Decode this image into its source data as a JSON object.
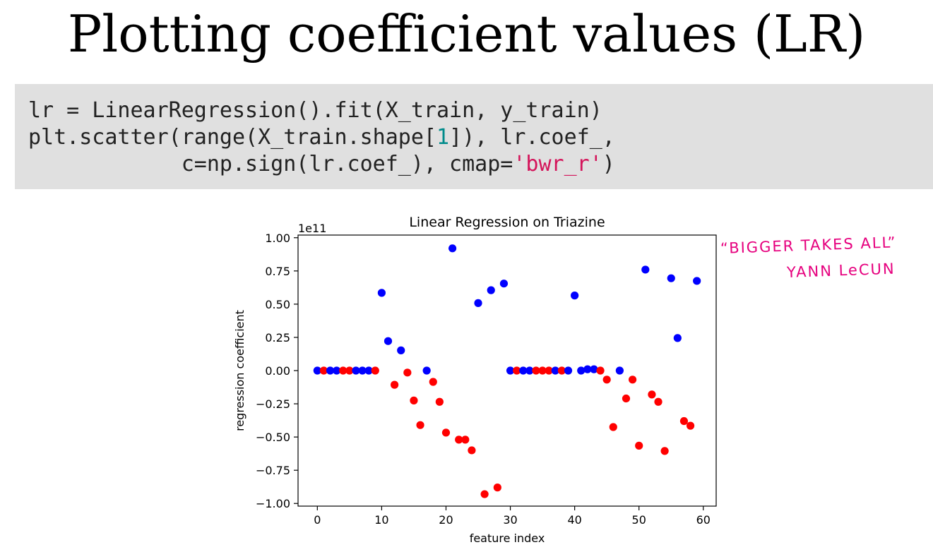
{
  "slide": {
    "title": "Plotting coefficient values (LR)"
  },
  "code": {
    "line1": "lr = LinearRegression().fit(X_train, y_train)",
    "line2_pre": "plt.scatter(range(X_train.shape[",
    "line2_num": "1",
    "line2_post": "]), lr.coef_,",
    "line3_pre": "            c=np.sign(lr.coef_), cmap=",
    "line3_str": "'bwr_r'",
    "line3_post": ")"
  },
  "annotation": {
    "line1": "“BIGGER TAKES ALL”",
    "line2": "YANN LeCUN"
  },
  "chart_data": {
    "type": "scatter",
    "title": "Linear Regression on Triazine",
    "xlabel": "feature index",
    "ylabel": "regression coefficient",
    "offset_text": "1e11",
    "xlim": [
      -3,
      62
    ],
    "ylim": [
      -1.02,
      1.02
    ],
    "xticks": [
      0,
      10,
      20,
      30,
      40,
      50,
      60
    ],
    "xtick_labels": [
      "0",
      "10",
      "20",
      "30",
      "40",
      "50",
      "60"
    ],
    "yticks": [
      1.0,
      0.75,
      0.5,
      0.25,
      0.0,
      -0.25,
      -0.5,
      -0.75,
      -1.0
    ],
    "ytick_labels": [
      "1.00",
      "0.75",
      "0.50",
      "0.25",
      "0.00",
      "−0.25",
      "−0.50",
      "−0.75",
      "−1.00"
    ],
    "colors": {
      "positive": "#0000ff",
      "negative": "#ff0000"
    },
    "grid": false,
    "points": [
      {
        "x": 0,
        "y": 0.0,
        "sign": 1
      },
      {
        "x": 1,
        "y": 0.0,
        "sign": -1
      },
      {
        "x": 2,
        "y": 0.0,
        "sign": 1
      },
      {
        "x": 3,
        "y": 0.0,
        "sign": 1
      },
      {
        "x": 4,
        "y": 0.0,
        "sign": -1
      },
      {
        "x": 5,
        "y": 0.0,
        "sign": -1
      },
      {
        "x": 6,
        "y": 0.0,
        "sign": 1
      },
      {
        "x": 7,
        "y": 0.0,
        "sign": 1
      },
      {
        "x": 8,
        "y": 0.0,
        "sign": 1
      },
      {
        "x": 9,
        "y": 0.0,
        "sign": -1
      },
      {
        "x": 10,
        "y": 0.585,
        "sign": 1
      },
      {
        "x": 11,
        "y": 0.222,
        "sign": 1
      },
      {
        "x": 12,
        "y": -0.107,
        "sign": -1
      },
      {
        "x": 13,
        "y": 0.152,
        "sign": 1
      },
      {
        "x": 14,
        "y": -0.015,
        "sign": -1
      },
      {
        "x": 15,
        "y": -0.225,
        "sign": -1
      },
      {
        "x": 16,
        "y": -0.41,
        "sign": -1
      },
      {
        "x": 17,
        "y": 0.0,
        "sign": 1
      },
      {
        "x": 18,
        "y": -0.085,
        "sign": -1
      },
      {
        "x": 19,
        "y": -0.235,
        "sign": -1
      },
      {
        "x": 20,
        "y": -0.467,
        "sign": -1
      },
      {
        "x": 21,
        "y": 0.92,
        "sign": 1
      },
      {
        "x": 22,
        "y": -0.52,
        "sign": -1
      },
      {
        "x": 23,
        "y": -0.52,
        "sign": -1
      },
      {
        "x": 24,
        "y": -0.6,
        "sign": -1
      },
      {
        "x": 25,
        "y": 0.508,
        "sign": 1
      },
      {
        "x": 26,
        "y": -0.93,
        "sign": -1
      },
      {
        "x": 27,
        "y": 0.605,
        "sign": 1
      },
      {
        "x": 28,
        "y": -0.88,
        "sign": -1
      },
      {
        "x": 29,
        "y": 0.655,
        "sign": 1
      },
      {
        "x": 30,
        "y": 0.0,
        "sign": 1
      },
      {
        "x": 31,
        "y": 0.0,
        "sign": -1
      },
      {
        "x": 32,
        "y": 0.0,
        "sign": 1
      },
      {
        "x": 33,
        "y": 0.0,
        "sign": 1
      },
      {
        "x": 34,
        "y": 0.0,
        "sign": -1
      },
      {
        "x": 35,
        "y": 0.0,
        "sign": -1
      },
      {
        "x": 36,
        "y": 0.0,
        "sign": -1
      },
      {
        "x": 37,
        "y": 0.0,
        "sign": 1
      },
      {
        "x": 38,
        "y": 0.0,
        "sign": -1
      },
      {
        "x": 39,
        "y": 0.0,
        "sign": 1
      },
      {
        "x": 40,
        "y": 0.565,
        "sign": 1
      },
      {
        "x": 41,
        "y": 0.0,
        "sign": 1
      },
      {
        "x": 42,
        "y": 0.01,
        "sign": 1
      },
      {
        "x": 43,
        "y": 0.01,
        "sign": 1
      },
      {
        "x": 44,
        "y": 0.0,
        "sign": -1
      },
      {
        "x": 45,
        "y": -0.068,
        "sign": -1
      },
      {
        "x": 46,
        "y": -0.425,
        "sign": -1
      },
      {
        "x": 47,
        "y": 0.0,
        "sign": 1
      },
      {
        "x": 48,
        "y": -0.21,
        "sign": -1
      },
      {
        "x": 49,
        "y": -0.068,
        "sign": -1
      },
      {
        "x": 50,
        "y": -0.565,
        "sign": -1
      },
      {
        "x": 51,
        "y": 0.76,
        "sign": 1
      },
      {
        "x": 52,
        "y": -0.18,
        "sign": -1
      },
      {
        "x": 53,
        "y": -0.235,
        "sign": -1
      },
      {
        "x": 54,
        "y": -0.605,
        "sign": -1
      },
      {
        "x": 55,
        "y": 0.695,
        "sign": 1
      },
      {
        "x": 56,
        "y": 0.245,
        "sign": 1
      },
      {
        "x": 57,
        "y": -0.38,
        "sign": -1
      },
      {
        "x": 58,
        "y": -0.415,
        "sign": -1
      },
      {
        "x": 59,
        "y": 0.675,
        "sign": 1
      }
    ]
  }
}
